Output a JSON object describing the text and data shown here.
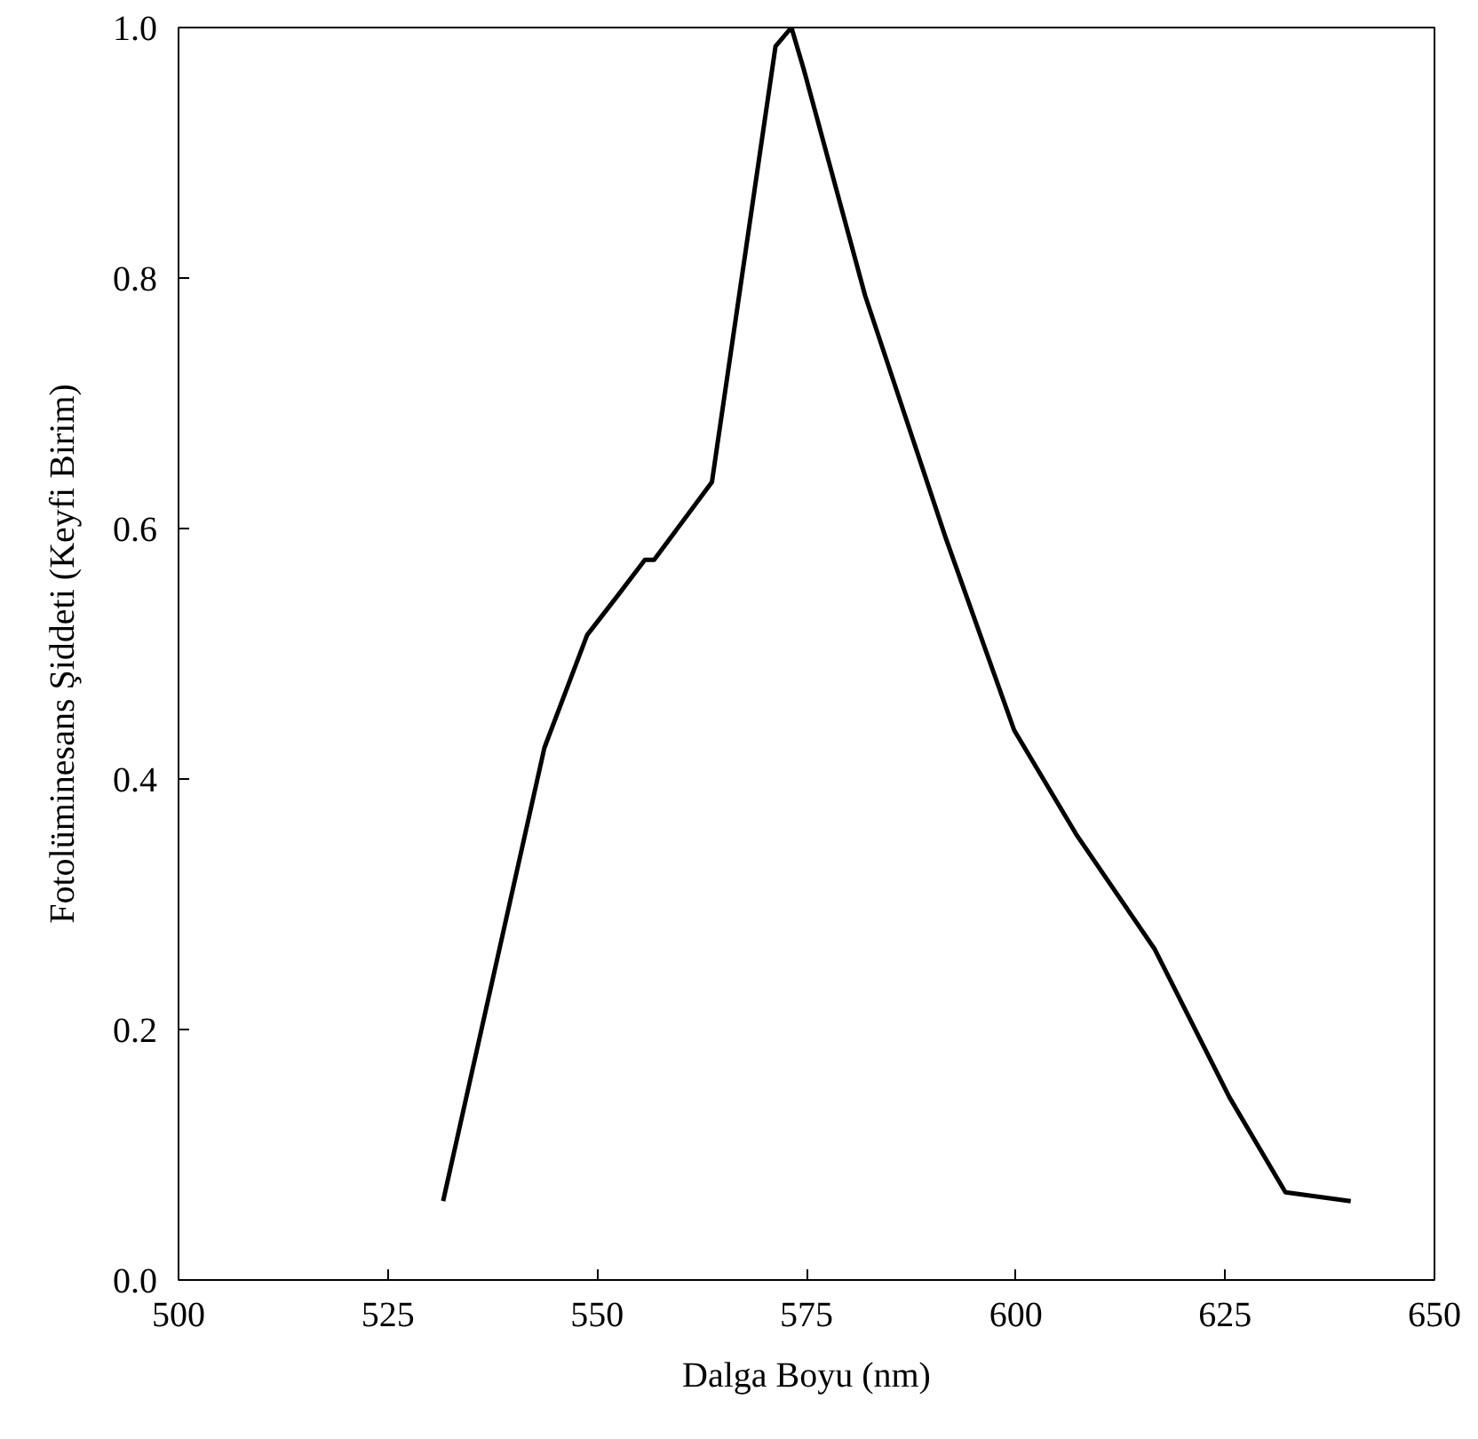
{
  "chart_data": {
    "type": "line",
    "xlabel": "Dalga Boyu (nm)",
    "ylabel": "Fotolüminesans Şiddeti (Keyfi Birim)",
    "x": [
      531.6,
      543.7,
      548.8,
      552.4,
      555.7,
      556.8,
      563.7,
      571.3,
      573.2,
      574.7,
      582.0,
      591.6,
      599.8,
      607.2,
      616.6,
      625.5,
      632.2,
      640.0
    ],
    "series": [
      {
        "color": "#000000",
        "values": [
          0.063,
          0.425,
          0.515,
          0.546,
          0.575,
          0.575,
          0.637,
          0.985,
          1.0,
          0.966,
          0.786,
          0.593,
          0.439,
          0.356,
          0.264,
          0.146,
          0.07,
          0.063
        ]
      }
    ],
    "xlim": [
      500,
      650
    ],
    "ylim": [
      0,
      1
    ],
    "xticks": [
      500,
      525,
      550,
      575,
      600,
      625,
      650
    ],
    "yticks": [
      {
        "value": 0,
        "label": "0.0"
      },
      0.2,
      0.4,
      0.6,
      0.8,
      {
        "value": 1,
        "label": "1.0"
      }
    ],
    "grid": false,
    "marker": "none",
    "line_style": "solid"
  }
}
